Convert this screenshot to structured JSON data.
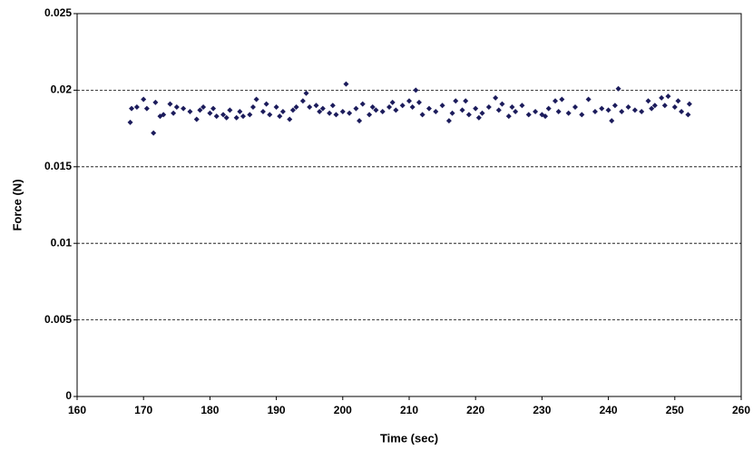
{
  "chart_data": {
    "type": "scatter",
    "xlabel": "Time (sec)",
    "ylabel": "Force (N)",
    "xlim": [
      160,
      260
    ],
    "xticks": [
      160,
      170,
      180,
      190,
      200,
      210,
      220,
      230,
      240,
      250,
      260
    ],
    "ylim": [
      0,
      0.025
    ],
    "yticks": [
      0,
      0.005,
      0.01,
      0.015,
      0.02,
      0.025
    ],
    "grid": true,
    "color": "#1c1c5c",
    "x": [
      168,
      168.2,
      169,
      170,
      170.5,
      171.5,
      171.8,
      172.5,
      173,
      174,
      174.5,
      175,
      176,
      177,
      178,
      178.5,
      179,
      180,
      180.5,
      181,
      182,
      182.5,
      183,
      184,
      184.5,
      185,
      186,
      186.5,
      187,
      188,
      188.5,
      189,
      190,
      190.5,
      191,
      192,
      192.5,
      193,
      194,
      194.5,
      195,
      196,
      196.5,
      197,
      198,
      198.5,
      199,
      200,
      200.5,
      201,
      202,
      202.5,
      203,
      204,
      204.5,
      205,
      206,
      207,
      207.5,
      208,
      209,
      210,
      210.5,
      211,
      211.5,
      212,
      213,
      214,
      215,
      216,
      216.5,
      217,
      218,
      218.5,
      219,
      220,
      220.5,
      221,
      222,
      223,
      223.5,
      224,
      225,
      225.5,
      226,
      227,
      228,
      229,
      230,
      230.5,
      231,
      232,
      232.5,
      233,
      234,
      235,
      236,
      237,
      238,
      239,
      240,
      240.5,
      241,
      241.5,
      242,
      243,
      244,
      245,
      246,
      246.5,
      247,
      248,
      248.5,
      249,
      250,
      250.5,
      251,
      252,
      252.2
    ],
    "y": [
      0.0179,
      0.0188,
      0.0189,
      0.0194,
      0.0188,
      0.0172,
      0.0192,
      0.0183,
      0.0184,
      0.0191,
      0.0185,
      0.0189,
      0.0188,
      0.0186,
      0.0181,
      0.0187,
      0.0189,
      0.0185,
      0.0188,
      0.0183,
      0.0184,
      0.0182,
      0.0187,
      0.0182,
      0.0186,
      0.0183,
      0.0184,
      0.0189,
      0.0194,
      0.0186,
      0.0191,
      0.0184,
      0.0189,
      0.0183,
      0.0186,
      0.0181,
      0.0187,
      0.0189,
      0.0193,
      0.0198,
      0.0189,
      0.019,
      0.0186,
      0.0188,
      0.0185,
      0.019,
      0.0184,
      0.0186,
      0.0204,
      0.0185,
      0.0188,
      0.018,
      0.0191,
      0.0184,
      0.0189,
      0.0187,
      0.0186,
      0.0189,
      0.0192,
      0.0187,
      0.019,
      0.0193,
      0.0189,
      0.02,
      0.0192,
      0.0184,
      0.0188,
      0.0186,
      0.019,
      0.018,
      0.0185,
      0.0193,
      0.0187,
      0.0193,
      0.0184,
      0.0188,
      0.0182,
      0.0185,
      0.0189,
      0.0195,
      0.0187,
      0.0191,
      0.0183,
      0.0189,
      0.0186,
      0.019,
      0.0184,
      0.0186,
      0.0184,
      0.0183,
      0.0188,
      0.0193,
      0.0186,
      0.0194,
      0.0185,
      0.0189,
      0.0184,
      0.0194,
      0.0186,
      0.0188,
      0.0187,
      0.018,
      0.019,
      0.0201,
      0.0186,
      0.0189,
      0.0187,
      0.0186,
      0.0193,
      0.0188,
      0.019,
      0.0195,
      0.019,
      0.0196,
      0.0189,
      0.0193,
      0.0186,
      0.0184,
      0.0191
    ]
  }
}
